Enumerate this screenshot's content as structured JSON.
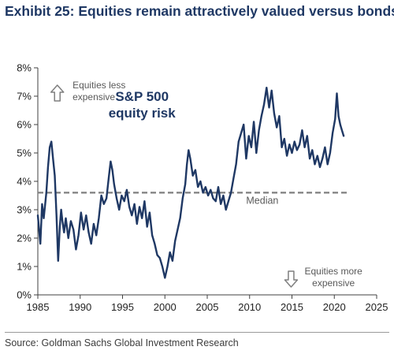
{
  "title": "Exhibit 25: Equities remain attractively valued versus bonds",
  "source": "Source: Goldman Sachs Global Investment Research",
  "chart_data": {
    "type": "line",
    "title": "S&P 500 equity risk",
    "title_lines": [
      "S&P 500",
      "equity risk"
    ],
    "xlim": [
      1985,
      2025
    ],
    "ylim": [
      0,
      8
    ],
    "x_ticks": [
      1985,
      1990,
      1995,
      2000,
      2005,
      2010,
      2015,
      2020,
      2025
    ],
    "y_ticks": [
      0,
      1,
      2,
      3,
      4,
      5,
      6,
      7,
      8
    ],
    "y_tick_labels": [
      "0%",
      "1%",
      "2%",
      "3%",
      "4%",
      "5%",
      "6%",
      "7%",
      "8%"
    ],
    "grid": false,
    "line_color": "#1f3864",
    "median": {
      "value": 3.6,
      "label": "Median",
      "color": "#7f7f7f"
    },
    "annotations": {
      "up": {
        "lines": [
          "Equities less",
          "expensive"
        ],
        "icon": "up-arrow-icon"
      },
      "down": {
        "lines": [
          "Equities more",
          "expensive"
        ],
        "icon": "down-arrow-icon"
      }
    },
    "series": [
      {
        "x": [
          1985.0,
          1985.3,
          1985.5,
          1985.7,
          1986.0,
          1986.2,
          1986.4,
          1986.6,
          1986.8,
          1987.0,
          1987.2,
          1987.4,
          1987.6,
          1987.75,
          1987.9,
          1988.1,
          1988.3,
          1988.6,
          1988.9,
          1989.2,
          1989.5,
          1989.8,
          1990.1,
          1990.4,
          1990.7,
          1991.0,
          1991.3,
          1991.6,
          1991.9,
          1992.2,
          1992.5,
          1992.8,
          1993.1,
          1993.4,
          1993.6,
          1993.8,
          1994.0,
          1994.3,
          1994.6,
          1994.9,
          1995.2,
          1995.5,
          1995.8,
          1996.1,
          1996.4,
          1996.7,
          1997.0,
          1997.3,
          1997.6,
          1997.9,
          1998.2,
          1998.5,
          1998.8,
          1999.1,
          1999.4,
          1999.7,
          2000.0,
          2000.3,
          2000.6,
          2000.9,
          2001.2,
          2001.5,
          2001.8,
          2002.1,
          2002.4,
          2002.6,
          2002.8,
          2003.0,
          2003.3,
          2003.6,
          2003.9,
          2004.2,
          2004.5,
          2004.8,
          2005.1,
          2005.4,
          2005.7,
          2006.0,
          2006.3,
          2006.6,
          2006.9,
          2007.2,
          2007.5,
          2007.8,
          2008.1,
          2008.4,
          2008.7,
          2009.0,
          2009.3,
          2009.6,
          2009.9,
          2010.2,
          2010.5,
          2010.8,
          2011.1,
          2011.4,
          2011.7,
          2012.0,
          2012.3,
          2012.6,
          2012.9,
          2013.2,
          2013.5,
          2013.8,
          2014.1,
          2014.4,
          2014.7,
          2015.0,
          2015.3,
          2015.6,
          2015.9,
          2016.2,
          2016.5,
          2016.8,
          2017.1,
          2017.4,
          2017.7,
          2018.0,
          2018.3,
          2018.6,
          2018.9,
          2019.2,
          2019.5,
          2019.8,
          2020.1,
          2020.3,
          2020.5,
          2020.7,
          2020.9,
          2021.1
        ],
        "y": [
          2.8,
          1.8,
          3.2,
          2.7,
          3.6,
          4.5,
          5.2,
          5.4,
          4.8,
          4.2,
          2.8,
          1.2,
          2.4,
          3.0,
          2.6,
          2.2,
          2.7,
          2.0,
          2.6,
          2.3,
          1.6,
          2.1,
          2.9,
          2.3,
          2.8,
          2.2,
          1.8,
          2.5,
          2.1,
          2.7,
          3.5,
          3.2,
          3.4,
          4.2,
          4.7,
          4.4,
          3.9,
          3.4,
          3.0,
          3.5,
          3.3,
          3.7,
          3.1,
          2.8,
          3.2,
          2.5,
          3.1,
          2.7,
          3.3,
          2.4,
          2.9,
          2.1,
          1.8,
          1.4,
          1.3,
          1.0,
          0.6,
          1.0,
          1.5,
          1.2,
          1.9,
          2.3,
          2.7,
          3.4,
          3.9,
          4.6,
          5.1,
          4.8,
          4.2,
          4.4,
          3.8,
          4.0,
          3.6,
          3.8,
          3.5,
          3.7,
          3.4,
          3.3,
          3.8,
          3.2,
          3.5,
          3.0,
          3.3,
          3.6,
          4.1,
          4.6,
          5.4,
          5.7,
          6.0,
          4.8,
          5.6,
          5.2,
          6.1,
          5.0,
          5.8,
          6.3,
          6.7,
          7.3,
          6.6,
          7.2,
          6.4,
          5.9,
          6.3,
          5.2,
          5.5,
          4.9,
          5.3,
          5.0,
          5.4,
          5.1,
          5.3,
          5.8,
          5.2,
          5.6,
          4.8,
          5.1,
          4.6,
          4.9,
          4.5,
          4.8,
          5.2,
          4.6,
          5.0,
          5.7,
          6.2,
          7.1,
          6.3,
          6.0,
          5.8,
          5.6
        ]
      }
    ]
  }
}
